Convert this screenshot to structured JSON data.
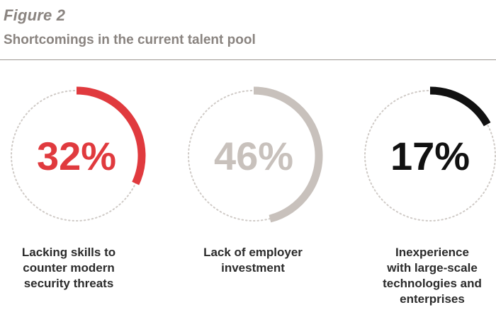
{
  "header": {
    "figure_label": "Figure 2",
    "title": "Shortcomings in the current talent pool"
  },
  "chart_data": {
    "type": "pie",
    "title": "Shortcomings in the current talent pool",
    "series": [
      {
        "value": 32,
        "label": "32%",
        "caption": "Lacking skills to\ncounter modern\nsecurity threats",
        "color": "#e03a3e"
      },
      {
        "value": 46,
        "label": "46%",
        "caption": "Lack of employer\ninvestment",
        "color": "#c8c1bc"
      },
      {
        "value": 17,
        "label": "17%",
        "caption": "Inexperience\nwith large-scale\ntechnologies and\nenterprises",
        "color": "#111111"
      }
    ],
    "track_style": "dotted"
  }
}
